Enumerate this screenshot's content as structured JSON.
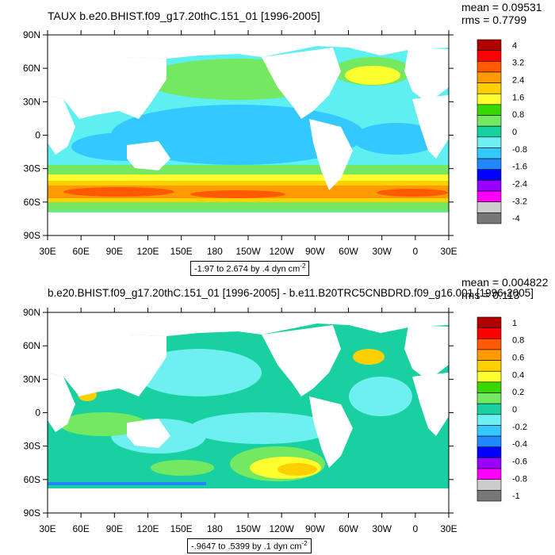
{
  "panels": [
    {
      "id": "top",
      "title": "TAUX b.e20.BHIST.f09_g17.20thC.151_01 [1996-2005]",
      "mean": "mean = 0.09531",
      "rms": "rms = 0.7799",
      "info": "-1.97 to 2.674 by .4 dyn cm",
      "info_sup": "-2",
      "colorbar_labels": [
        "4",
        "3.2",
        "2.4",
        "1.6",
        "0.8",
        "0",
        "-0.8",
        "-1.6",
        "-2.4",
        "-3.2",
        "-4"
      ],
      "colorbar_colors": [
        "#b00000",
        "#ff0000",
        "#ff5a00",
        "#ff9a00",
        "#ffd000",
        "#ffff30",
        "#39d800",
        "#74e860",
        "#19d0a0",
        "#6ef0f0",
        "#33c8ff",
        "#2288ff",
        "#0000ff",
        "#9a00ff",
        "#ff00ff",
        "#cccccc",
        "#777777"
      ]
    },
    {
      "id": "bottom",
      "title": "b.e20.BHIST.f09_g17.20thC.151_01 [1996-2005] - b.e11.B20TRC5CNBDRD.f09_g16.001 [1996-2005]",
      "mean": "mean = 0.004822",
      "rms": "rms = 0.113",
      "info": "-.9647 to .5399 by .1 dyn cm",
      "info_sup": "-2",
      "colorbar_labels": [
        "1",
        "0.8",
        "0.6",
        "0.4",
        "0.2",
        "0",
        "-0.2",
        "-0.4",
        "-0.6",
        "-0.8",
        "-1"
      ],
      "colorbar_colors": [
        "#b00000",
        "#ff0000",
        "#ff5a00",
        "#ff9a00",
        "#ffd000",
        "#ffff30",
        "#39d800",
        "#74e860",
        "#19d0a0",
        "#6ef0f0",
        "#33c8ff",
        "#2288ff",
        "#0000ff",
        "#9a00ff",
        "#ff00ff",
        "#cccccc",
        "#777777"
      ]
    }
  ],
  "axes": {
    "lat_labels": [
      "90N",
      "60N",
      "30N",
      "0",
      "30S",
      "60S",
      "90S"
    ],
    "lon_labels": [
      "30E",
      "60E",
      "90E",
      "120E",
      "150E",
      "180",
      "150W",
      "120W",
      "90W",
      "60W",
      "30W",
      "0",
      "30E"
    ]
  },
  "colors": {
    "land": "#ffffff",
    "ocean_top_base": "#2fe0c8",
    "ocean_bottom_base": "#2fe0c8"
  }
}
